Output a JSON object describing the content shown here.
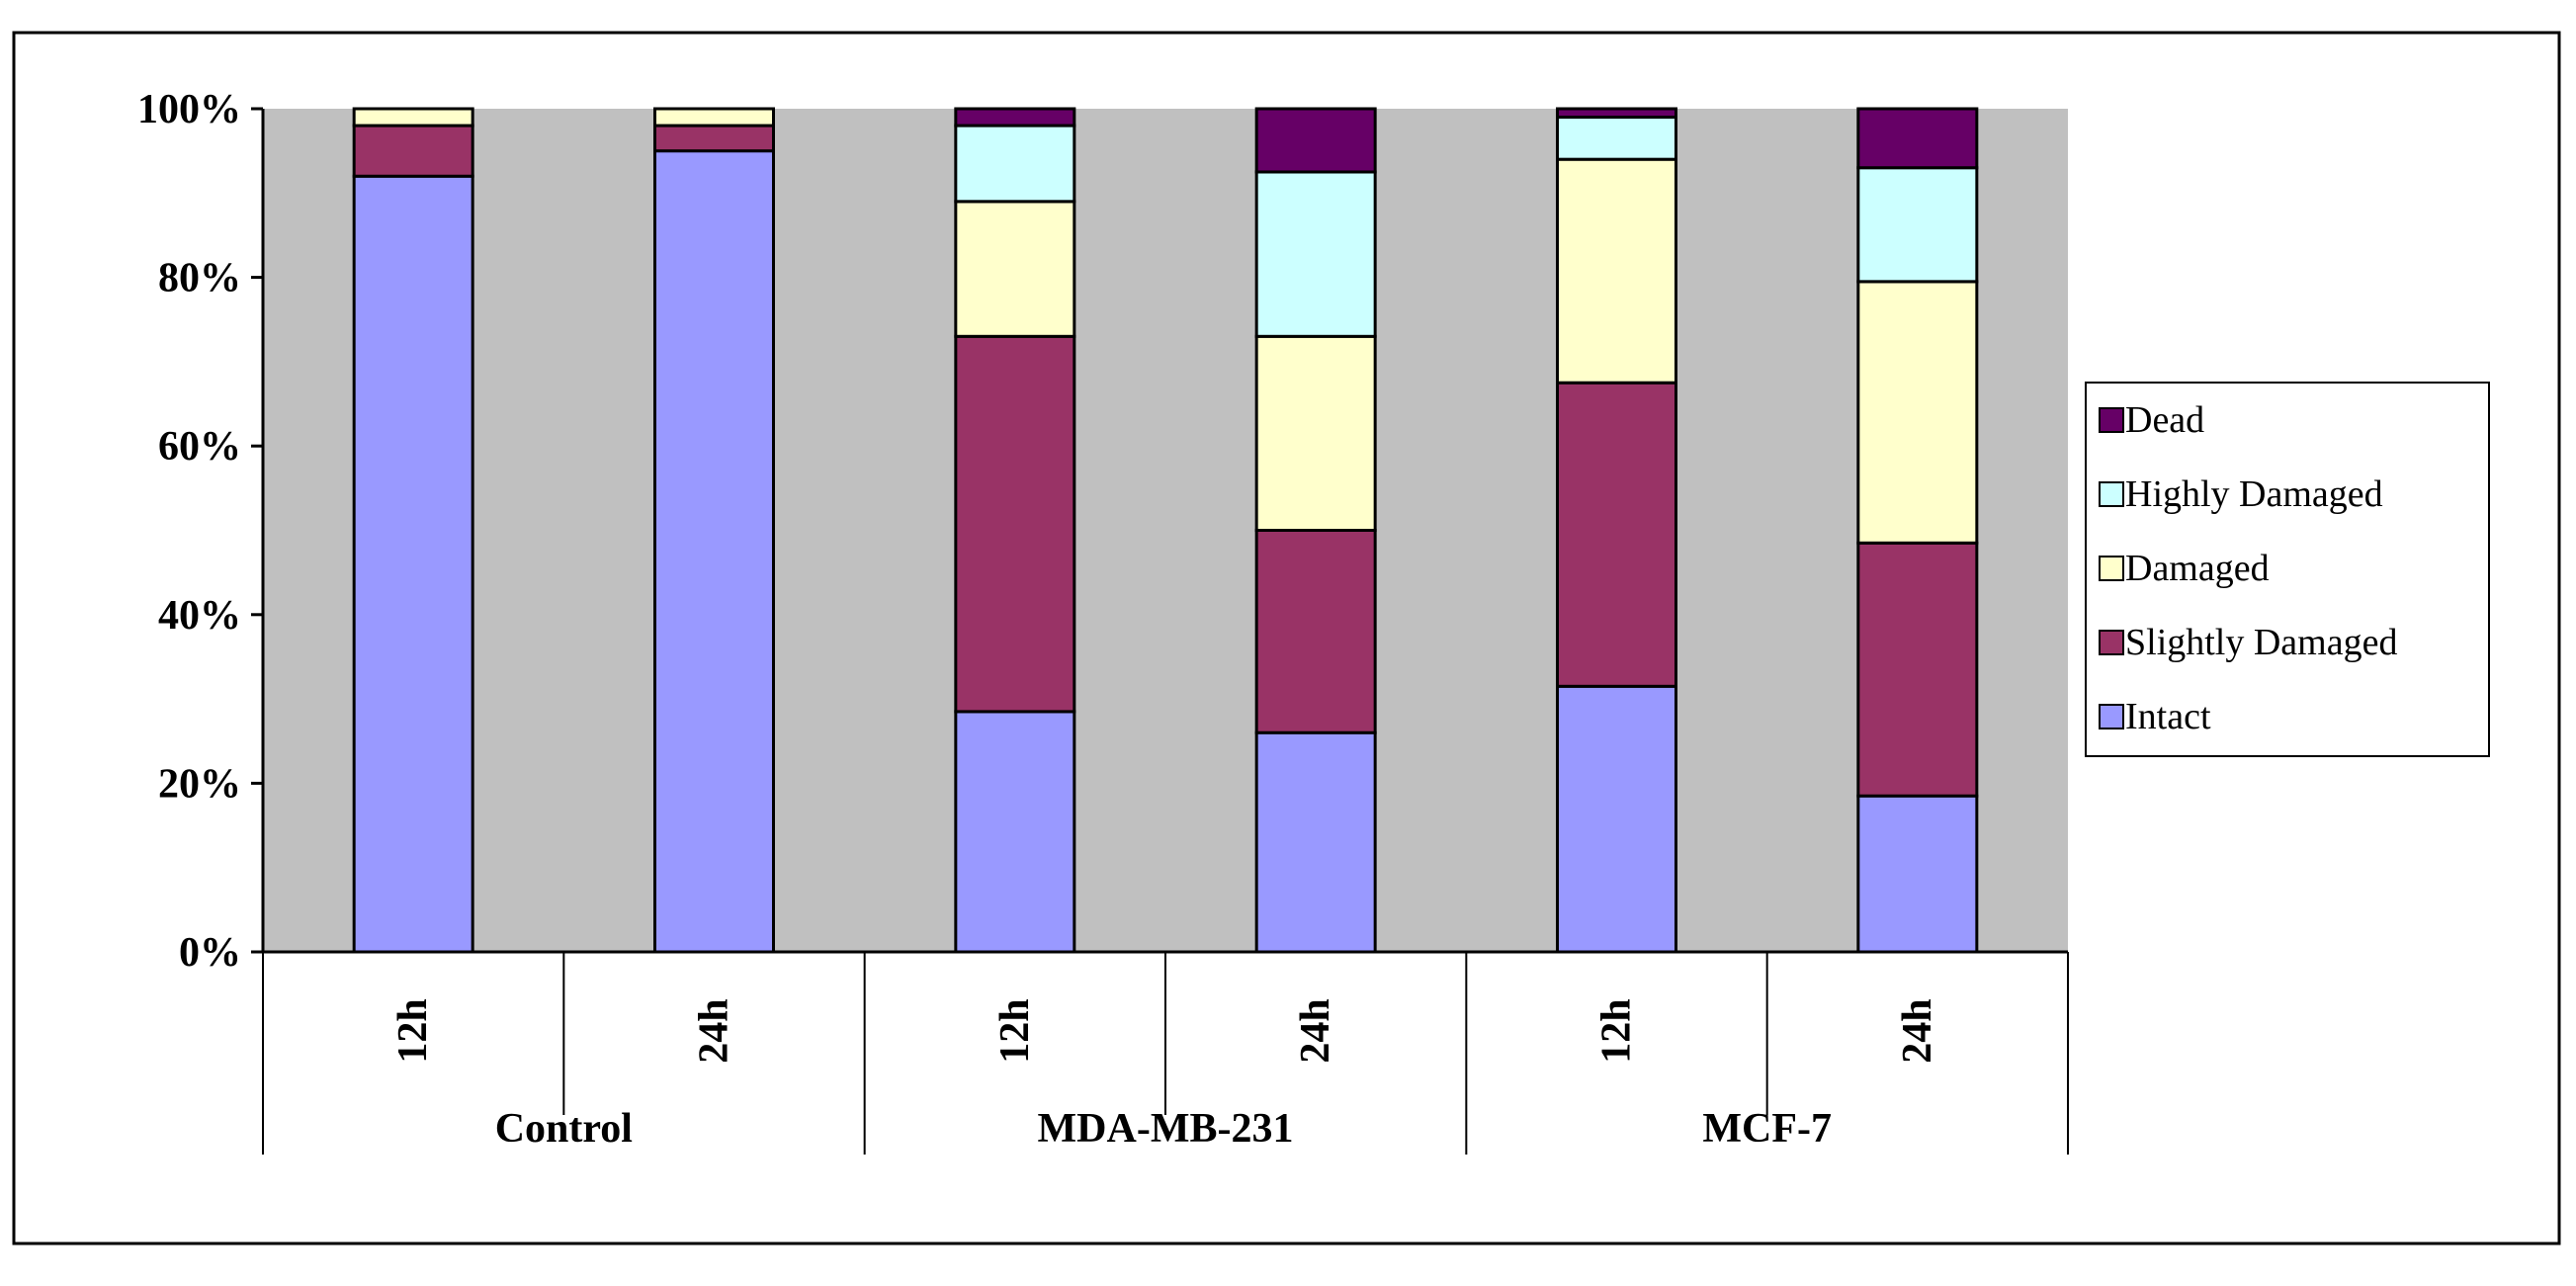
{
  "chart_data": {
    "type": "bar",
    "stacked": true,
    "percent_axis": true,
    "title": "",
    "xlabel": "",
    "ylabel": "",
    "ylim": [
      0,
      100
    ],
    "yticks": [
      "0%",
      "20%",
      "40%",
      "60%",
      "80%",
      "100%"
    ],
    "grid": false,
    "legend_position": "right",
    "categories": [
      "12h",
      "24h",
      "12h",
      "24h",
      "12h",
      "24h"
    ],
    "groups": [
      {
        "label": "Control",
        "bars": [
          0,
          1
        ]
      },
      {
        "label": "MDA-MB-231",
        "bars": [
          2,
          3
        ]
      },
      {
        "label": "MCF-7",
        "bars": [
          4,
          5
        ]
      }
    ],
    "series": [
      {
        "name": "Intact",
        "color": "#9999FF",
        "values": [
          92,
          95,
          28.5,
          26,
          31.5,
          18.5
        ]
      },
      {
        "name": "Slightly Damaged",
        "color": "#993366",
        "values": [
          6,
          3,
          44.5,
          24,
          36,
          30
        ]
      },
      {
        "name": "Damaged",
        "color": "#FFFFCC",
        "values": [
          2,
          2,
          16,
          23,
          26.5,
          31
        ]
      },
      {
        "name": "Highly Damaged",
        "color": "#CCFFFF",
        "values": [
          0,
          0,
          9,
          19.5,
          5,
          13.5
        ]
      },
      {
        "name": "Dead",
        "color": "#660066",
        "values": [
          0,
          0,
          2,
          7.5,
          1,
          7
        ]
      }
    ],
    "legend_order": [
      "Dead",
      "Highly Damaged",
      "Damaged",
      "Slightly Damaged",
      "Intact"
    ],
    "plot_background": "#C0C0C0"
  }
}
